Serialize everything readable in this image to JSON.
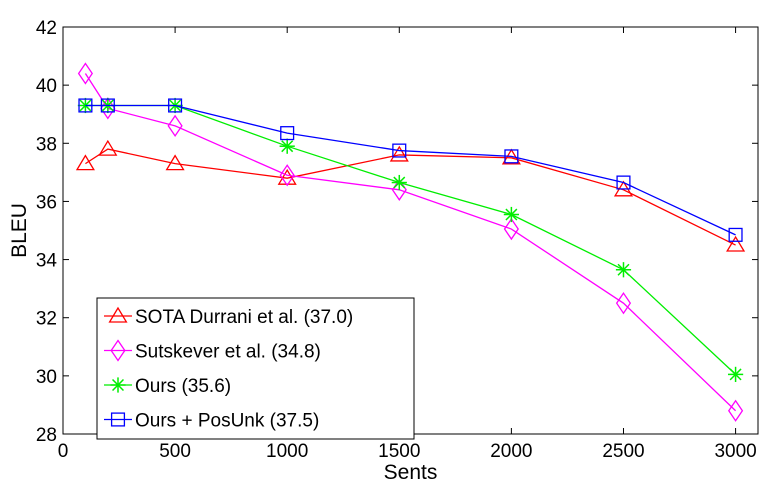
{
  "chart_data": {
    "type": "line",
    "title": "",
    "xlabel": "Sents",
    "ylabel": "BLEU",
    "xlim": [
      0,
      3100
    ],
    "ylim": [
      28,
      42
    ],
    "xticks": [
      0,
      500,
      1000,
      1500,
      2000,
      2500,
      3000
    ],
    "yticks": [
      28,
      30,
      32,
      34,
      36,
      38,
      40,
      42
    ],
    "xtick_labels": [
      "0",
      "500",
      "1000",
      "1500",
      "2000",
      "2500",
      "3000"
    ],
    "ytick_labels": [
      "28",
      "30",
      "32",
      "34",
      "36",
      "38",
      "40",
      "42"
    ],
    "grid": false,
    "legend_position": "bottom-left",
    "series": [
      {
        "name": "SOTA Durrani et al. (37.0)",
        "color": "#ff0000",
        "marker": "triangle",
        "x": [
          100,
          200,
          500,
          1000,
          1500,
          2000,
          2500,
          3000
        ],
        "y": [
          37.3,
          37.8,
          37.3,
          36.8,
          37.6,
          37.5,
          36.4,
          34.5
        ]
      },
      {
        "name": "Sutskever et al. (34.8)",
        "color": "#ff00ff",
        "marker": "diamond",
        "x": [
          100,
          200,
          500,
          1000,
          1500,
          2000,
          2500,
          3000
        ],
        "y": [
          40.4,
          39.2,
          38.6,
          36.9,
          36.4,
          35.05,
          32.5,
          28.8
        ]
      },
      {
        "name": "Ours (35.6)",
        "color": "#00ee00",
        "marker": "star",
        "x": [
          100,
          200,
          500,
          1000,
          1500,
          2000,
          2500,
          3000
        ],
        "y": [
          39.3,
          39.3,
          39.3,
          37.9,
          36.65,
          35.55,
          33.65,
          30.05
        ]
      },
      {
        "name": "Ours + PosUnk (37.5)",
        "color": "#0000ff",
        "marker": "square",
        "x": [
          100,
          200,
          500,
          1000,
          1500,
          2000,
          2500,
          3000
        ],
        "y": [
          39.3,
          39.3,
          39.3,
          38.35,
          37.75,
          37.55,
          36.65,
          34.85
        ]
      }
    ]
  }
}
